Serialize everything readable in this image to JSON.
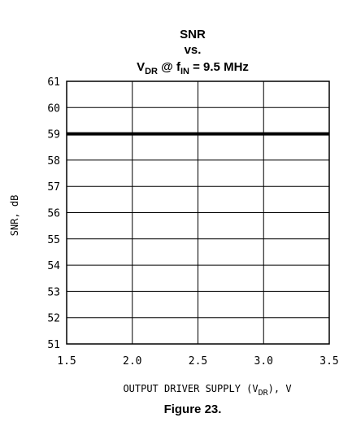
{
  "chart_data": {
    "type": "line",
    "title_line1": "SNR",
    "title_line2": "vs.",
    "title_line3": {
      "v": "V",
      "v_sub": "DR",
      "at": " @ f",
      "f_sub": "IN",
      "rest": " = 9.5 MHz"
    },
    "xlabel": {
      "pre": "OUTPUT DRIVER SUPPLY (V",
      "sub": "DR",
      "post": "), V"
    },
    "ylabel": "SNR, dB",
    "xlim": [
      1.5,
      3.5
    ],
    "ylim": [
      51,
      61
    ],
    "x_ticks": [
      "1.5",
      "2.0",
      "2.5",
      "3.0",
      "3.5"
    ],
    "y_ticks": [
      "61",
      "60",
      "59",
      "58",
      "57",
      "56",
      "55",
      "54",
      "53",
      "52",
      "51"
    ],
    "grid": true,
    "series": [
      {
        "x": [
          1.5,
          3.5
        ],
        "y": [
          59,
          59
        ]
      }
    ]
  },
  "caption": "Figure 23.",
  "colors": {
    "line": "#000000",
    "grid": "#000000"
  }
}
